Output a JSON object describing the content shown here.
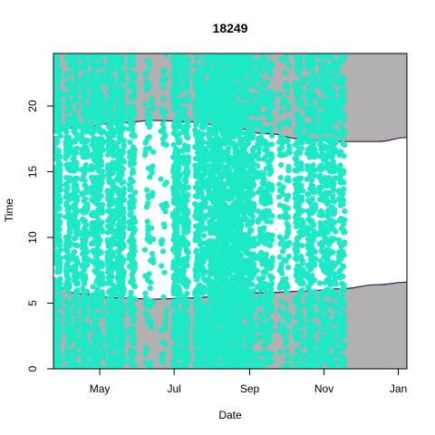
{
  "chart_data": {
    "type": "scatter",
    "title": "18249",
    "xlabel": "Date",
    "ylabel": "Time",
    "x_range": [
      "2012-03-24",
      "2013-01-08"
    ],
    "ylim": [
      0,
      24
    ],
    "x_ticks": [
      {
        "date": "2012-05-01",
        "label": "May"
      },
      {
        "date": "2012-07-01",
        "label": "Jul"
      },
      {
        "date": "2012-09-01",
        "label": "Sep"
      },
      {
        "date": "2012-11-01",
        "label": "Nov"
      },
      {
        "date": "2013-01-01",
        "label": "Jan"
      }
    ],
    "y_ticks": [
      0,
      5,
      10,
      15,
      20
    ],
    "grid": false,
    "night_fill_color": "#b2b0b0",
    "boundary_line_color": "#3d1d4f",
    "point_color": "#1de9c6",
    "sunset": {
      "dates": [
        "2012-03-24",
        "2012-04-15",
        "2012-05-15",
        "2012-06-15",
        "2012-07-15",
        "2012-08-15",
        "2012-09-15",
        "2012-10-15",
        "2012-11-15",
        "2012-12-15",
        "2013-01-08"
      ],
      "hours": [
        18.1,
        18.4,
        18.7,
        18.9,
        18.8,
        18.4,
        17.9,
        17.5,
        17.3,
        17.3,
        17.6
      ]
    },
    "sunrise": {
      "dates": [
        "2012-03-24",
        "2012-04-15",
        "2012-05-15",
        "2012-06-15",
        "2012-07-15",
        "2012-08-15",
        "2012-09-15",
        "2012-10-15",
        "2012-11-15",
        "2012-12-15",
        "2013-01-08"
      ],
      "hours": [
        6.3,
        5.7,
        5.4,
        5.3,
        5.4,
        5.6,
        5.8,
        5.9,
        6.1,
        6.4,
        6.6
      ]
    },
    "activity_bands": [
      {
        "start": "2012-03-24",
        "end": "2012-03-30",
        "density": 1.0
      },
      {
        "start": "2012-04-03",
        "end": "2012-04-07",
        "density": 0.8
      },
      {
        "start": "2012-04-09",
        "end": "2012-04-13",
        "density": 0.8
      },
      {
        "start": "2012-04-16",
        "end": "2012-04-21",
        "density": 0.8
      },
      {
        "start": "2012-04-24",
        "end": "2012-05-04",
        "density": 0.7
      },
      {
        "start": "2012-05-07",
        "end": "2012-05-13",
        "density": 0.9
      },
      {
        "start": "2012-05-15",
        "end": "2012-05-21",
        "density": 0.9
      },
      {
        "start": "2012-05-25",
        "end": "2012-05-30",
        "density": 0.7
      },
      {
        "start": "2012-06-07",
        "end": "2012-06-14",
        "density": 0.2
      },
      {
        "start": "2012-06-20",
        "end": "2012-06-25",
        "density": 0.15
      },
      {
        "start": "2012-06-30",
        "end": "2012-07-06",
        "density": 1.0
      },
      {
        "start": "2012-07-08",
        "end": "2012-07-13",
        "density": 0.8
      },
      {
        "start": "2012-07-18",
        "end": "2012-07-27",
        "density": 0.8
      },
      {
        "start": "2012-07-29",
        "end": "2012-08-28",
        "density": 1.0
      },
      {
        "start": "2012-08-29",
        "end": "2012-09-05",
        "density": 0.8
      },
      {
        "start": "2012-09-07",
        "end": "2012-09-20",
        "density": 0.45
      },
      {
        "start": "2012-09-25",
        "end": "2012-10-04",
        "density": 0.25
      },
      {
        "start": "2012-10-08",
        "end": "2012-10-15",
        "density": 0.6
      },
      {
        "start": "2012-10-18",
        "end": "2012-10-25",
        "density": 0.7
      },
      {
        "start": "2012-10-28",
        "end": "2012-11-11",
        "density": 0.6
      },
      {
        "start": "2012-11-13",
        "end": "2012-11-18",
        "density": 0.6
      }
    ]
  }
}
